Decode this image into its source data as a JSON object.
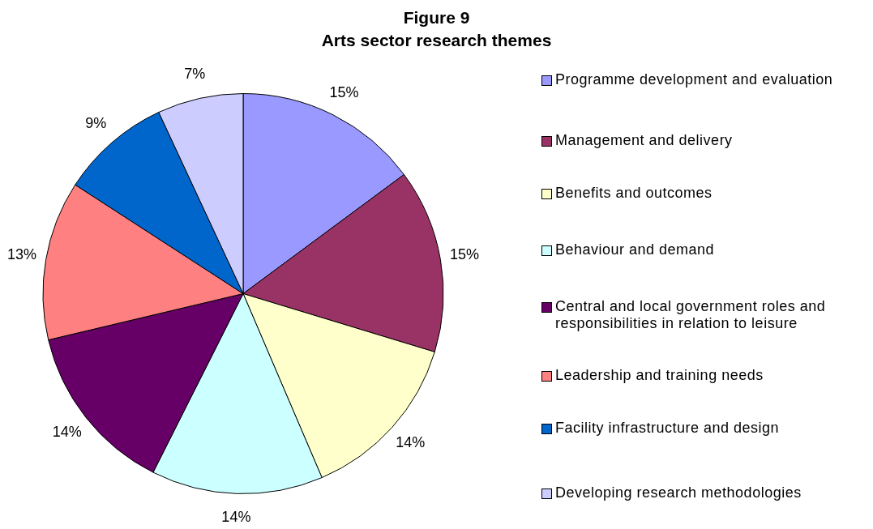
{
  "chart_data": {
    "type": "pie",
    "title": "Figure 9",
    "subtitle": "Arts sector research themes",
    "categories": [
      "Programme development and evaluation",
      "Management and delivery",
      "Benefits and outcomes",
      "Behaviour and demand",
      "Central and local government roles and responsibilities in relation to leisure",
      "Leadership and training needs",
      "Facility infrastructure and design",
      "Developing research methodologies"
    ],
    "values": [
      15,
      15,
      14,
      14,
      14,
      13,
      9,
      7
    ],
    "colors": [
      "#9999ff",
      "#993366",
      "#ffffcc",
      "#ccffff",
      "#660066",
      "#ff8080",
      "#0066cc",
      "#ccccff"
    ],
    "value_labels": [
      "15%",
      "15%",
      "14%",
      "14%",
      "14%",
      "13%",
      "9%",
      "7%"
    ],
    "legend": "right"
  }
}
